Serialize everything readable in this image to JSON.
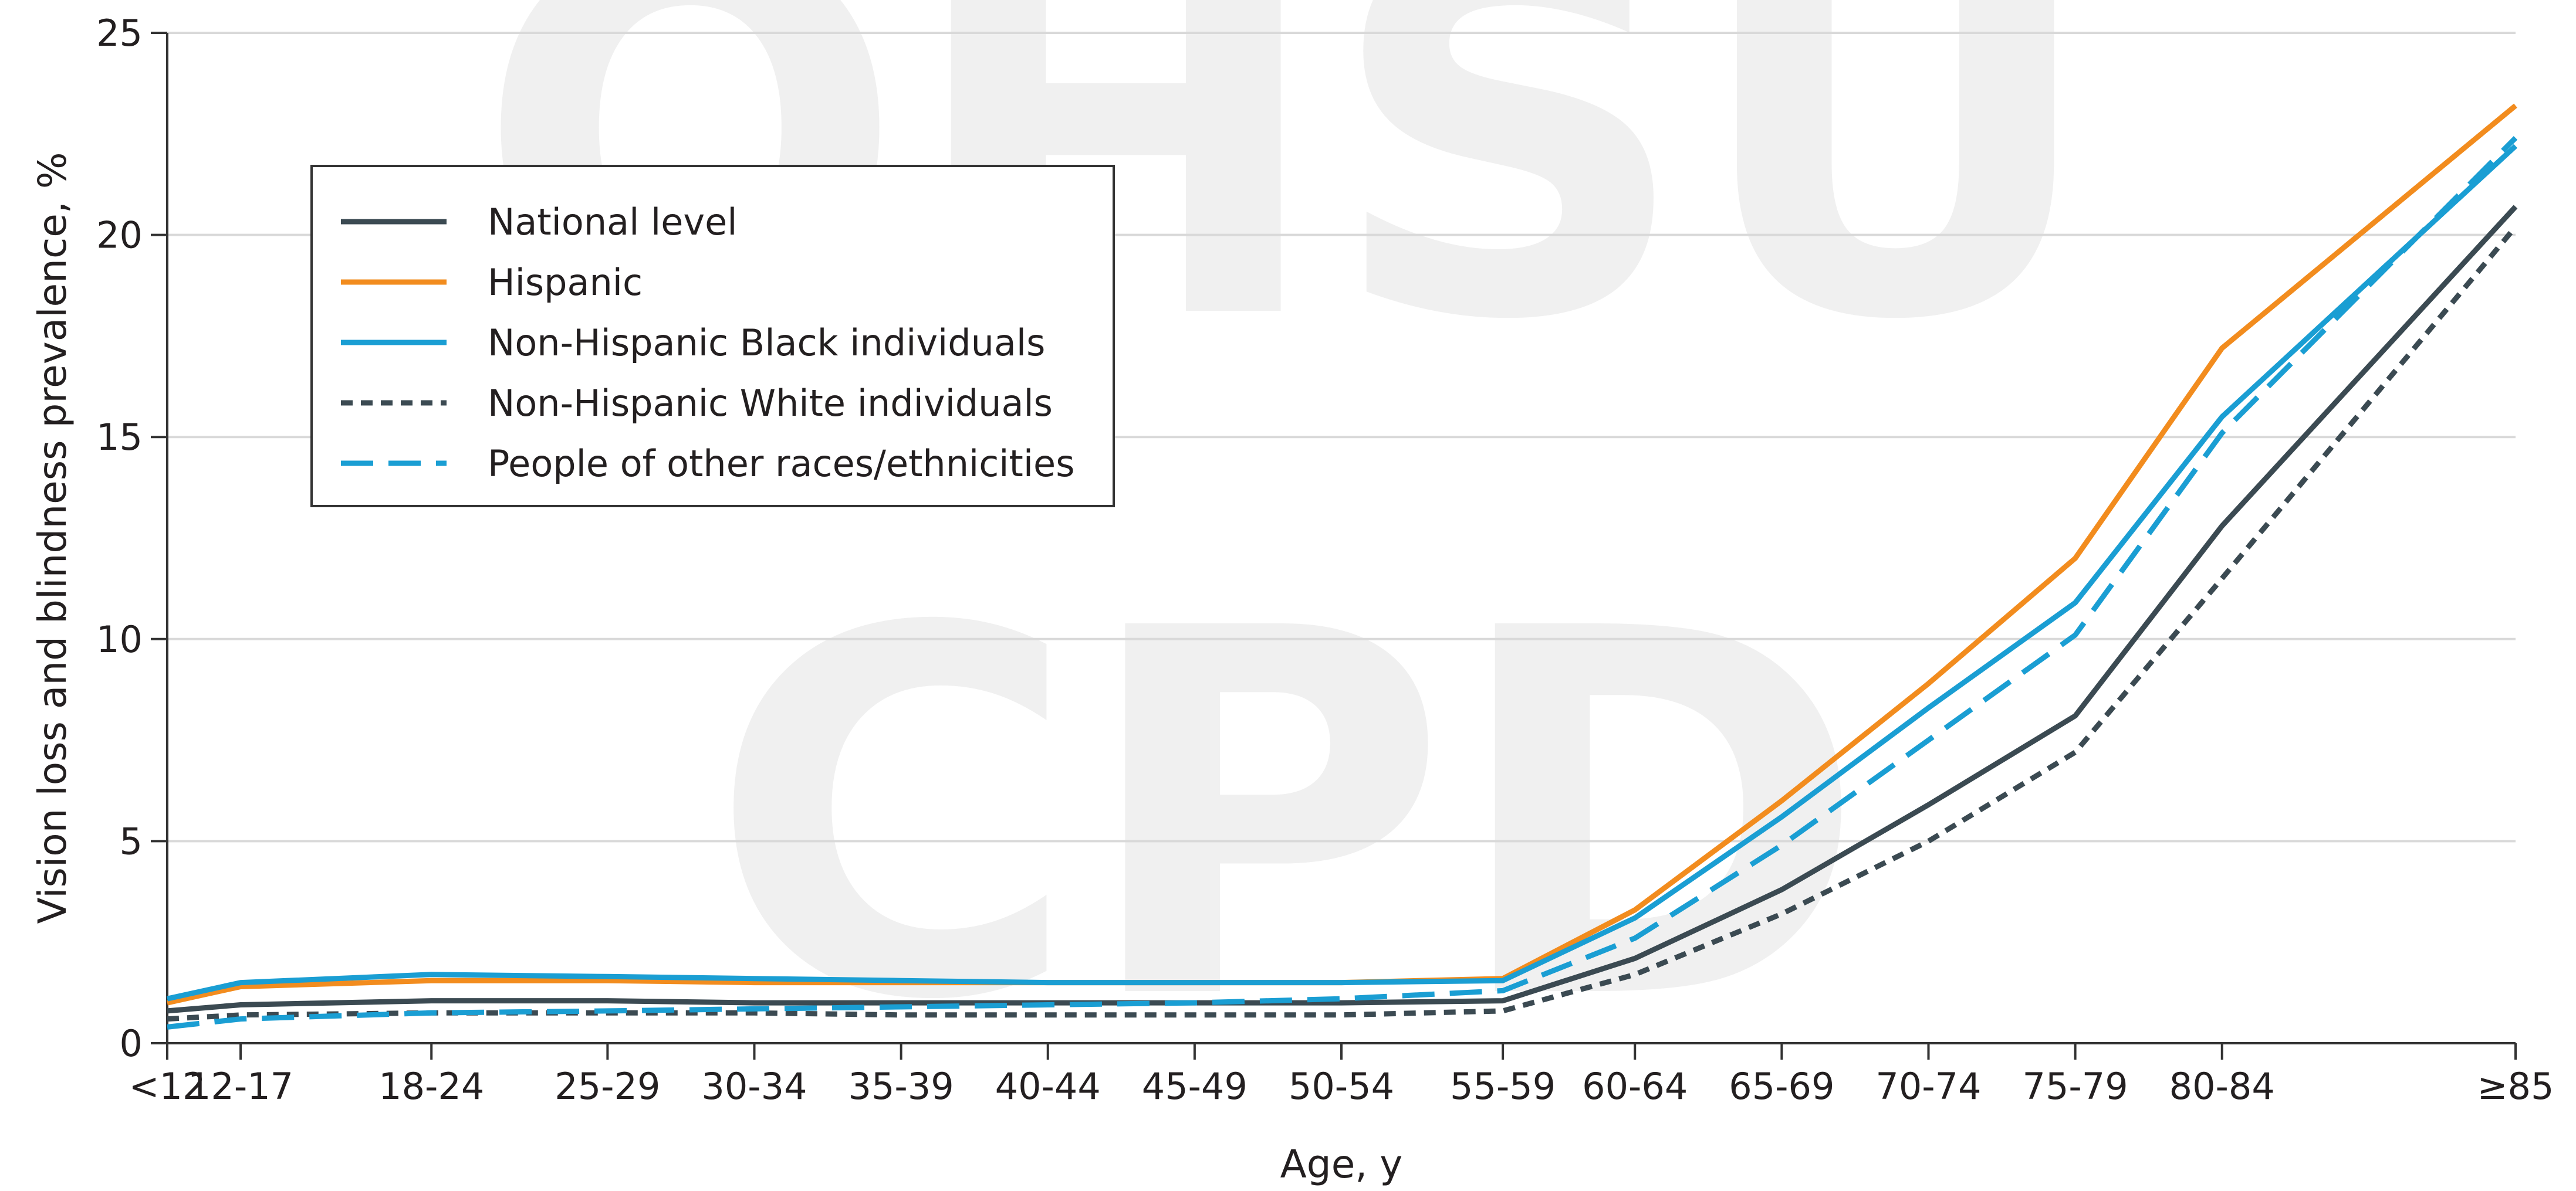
{
  "watermark": {
    "line1": "OHSU",
    "line2": "CPD"
  },
  "chart_data": {
    "type": "line",
    "title": "",
    "xlabel": "Age, y",
    "ylabel": "Vision loss and blindness prevalence, %",
    "categories": [
      "<12",
      "12-17",
      "18-24",
      "25-29",
      "30-34",
      "35-39",
      "40-44",
      "45-49",
      "50-54",
      "55-59",
      "60-64",
      "65-69",
      "70-74",
      "75-79",
      "80-84",
      "≥85"
    ],
    "x": [
      12,
      14.5,
      21,
      27,
      32,
      37,
      42,
      47,
      52,
      57.5,
      62,
      67,
      72,
      77,
      82,
      92
    ],
    "xlim": [
      12,
      92
    ],
    "ylim": [
      0,
      25
    ],
    "yticks": [
      0,
      5,
      10,
      15,
      20,
      25
    ],
    "grid": true,
    "legend_position": "top-left",
    "series": [
      {
        "name": "National level",
        "color": "#3b4a52",
        "style": "solid",
        "values": [
          0.8,
          0.95,
          1.05,
          1.05,
          1.0,
          1.0,
          1.0,
          1.0,
          1.0,
          1.05,
          2.1,
          3.8,
          5.9,
          8.1,
          12.8,
          20.7
        ]
      },
      {
        "name": "Hispanic",
        "color": "#f28c1e",
        "style": "solid",
        "values": [
          1.0,
          1.4,
          1.55,
          1.55,
          1.5,
          1.5,
          1.5,
          1.5,
          1.5,
          1.6,
          3.3,
          6.0,
          8.9,
          12.0,
          17.2,
          23.2
        ]
      },
      {
        "name": "Non-Hispanic Black individuals",
        "color": "#1a9ed3",
        "style": "solid",
        "values": [
          1.1,
          1.5,
          1.7,
          1.65,
          1.6,
          1.55,
          1.5,
          1.5,
          1.5,
          1.55,
          3.1,
          5.6,
          8.3,
          10.9,
          15.5,
          22.2
        ]
      },
      {
        "name": "Non-Hispanic White individuals",
        "color": "#3b4a52",
        "style": "dotted",
        "values": [
          0.6,
          0.7,
          0.75,
          0.75,
          0.75,
          0.7,
          0.7,
          0.7,
          0.7,
          0.8,
          1.7,
          3.2,
          5.0,
          7.2,
          11.5,
          20.2
        ]
      },
      {
        "name": "People of other races/ethnicities",
        "color": "#1a9ed3",
        "style": "dashed",
        "values": [
          0.4,
          0.6,
          0.75,
          0.8,
          0.85,
          0.9,
          0.95,
          1.0,
          1.1,
          1.3,
          2.6,
          4.9,
          7.5,
          10.1,
          15.1,
          22.4
        ]
      }
    ]
  }
}
